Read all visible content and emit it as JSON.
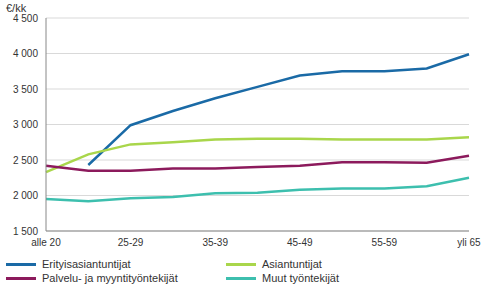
{
  "chart_data": {
    "type": "line",
    "y_label": "€/kk",
    "categories": [
      "alle 20",
      null,
      "25-29",
      null,
      "35-39",
      null,
      "45-49",
      null,
      "55-59",
      null,
      "yli 65"
    ],
    "ylim": [
      1500,
      4500
    ],
    "yticks": [
      {
        "value": 1500,
        "label": "1 500"
      },
      {
        "value": 2000,
        "label": "2 000"
      },
      {
        "value": 2500,
        "label": "2 500"
      },
      {
        "value": 3000,
        "label": "3 000"
      },
      {
        "value": 3500,
        "label": "3 500"
      },
      {
        "value": 4000,
        "label": "4 000"
      },
      {
        "value": 4500,
        "label": "4 500"
      }
    ],
    "grid": true,
    "legend": "bottom",
    "series": [
      {
        "name": "Erityisasiantuntijat",
        "color": "#1a6aa6",
        "values": [
          null,
          2430,
          2990,
          3190,
          3370,
          3530,
          3690,
          3750,
          3750,
          3790,
          3990
        ]
      },
      {
        "name": "Asiantuntijat",
        "color": "#a9d64b",
        "values": [
          2330,
          2580,
          2720,
          2750,
          2790,
          2800,
          2800,
          2790,
          2790,
          2790,
          2820
        ]
      },
      {
        "name": "Palvelu- ja myyntityöntekijät",
        "color": "#8c1a5c",
        "values": [
          2420,
          2350,
          2350,
          2380,
          2380,
          2400,
          2420,
          2470,
          2470,
          2460,
          2560
        ]
      },
      {
        "name": "Muut työntekijät",
        "color": "#3dbfae",
        "values": [
          1950,
          1920,
          1960,
          1980,
          2030,
          2040,
          2080,
          2100,
          2100,
          2130,
          2250
        ]
      }
    ]
  }
}
